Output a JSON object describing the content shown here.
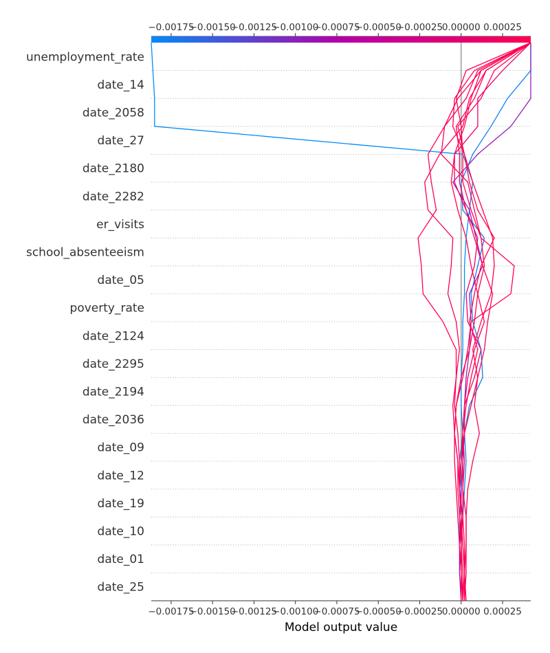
{
  "chart_data": {
    "type": "line",
    "subtype": "shap-decision-plot",
    "title": "",
    "xlabel": "Model output value",
    "ylabel": "",
    "xlim": [
      -0.00187,
      0.00042
    ],
    "base_value": 0.0,
    "x_ticks": [
      -0.00175,
      -0.0015,
      -0.00125,
      -0.001,
      -0.00075,
      -0.0005,
      -0.00025,
      0.0,
      0.00025
    ],
    "x_tick_labels": [
      "−0.00175",
      "−0.00150",
      "−0.00125",
      "−0.00100",
      "−0.00075",
      "−0.00050",
      "−0.00025",
      "0.00000",
      "0.00025"
    ],
    "features": [
      "unemployment_rate",
      "date_14",
      "date_2058",
      "date_27",
      "date_2180",
      "date_2282",
      "er_visits",
      "school_absenteeism",
      "date_05",
      "poverty_rate",
      "date_2124",
      "date_2295",
      "date_2194",
      "date_2036",
      "date_09",
      "date_12",
      "date_19",
      "date_10",
      "date_01",
      "date_25"
    ],
    "colormap": {
      "low": "#008bfb",
      "mid": "#b400a8",
      "high": "#ff0052"
    },
    "grid": "dotted-rows",
    "series": [
      {
        "color_value": 0.0,
        "values": [
          0.0,
          0.0,
          -1e-05,
          -1e-05,
          0.0,
          -1e-05,
          1e-05,
          0.0,
          0.0,
          1e-05,
          1e-05,
          2e-05,
          2e-05,
          3e-05,
          5e-05,
          7e-05,
          1e-05,
          -0.00185,
          -0.00185,
          -0.00186,
          -0.00187
        ]
      },
      {
        "color_value": 0.05,
        "values": [
          0.0,
          0.0,
          -1e-05,
          1e-05,
          2e-05,
          3e-05,
          2e-05,
          5e-05,
          0.00013,
          0.00012,
          7e-05,
          6e-05,
          0.0001,
          0.00014,
          1e-05,
          0.0,
          7e-05,
          0.00018,
          0.00028,
          0.00042,
          0.00042
        ]
      },
      {
        "color_value": 0.4,
        "values": [
          0.0,
          -1e-05,
          -1e-05,
          0.0,
          0.0,
          1e-05,
          1e-05,
          2e-05,
          3e-05,
          5e-05,
          6e-05,
          5e-05,
          0.00013,
          9e-05,
          5e-05,
          -5e-05,
          0.0001,
          0.0003,
          0.00042,
          0.00042,
          0.00042
        ]
      },
      {
        "color_value": 0.85,
        "values": [
          2e-05,
          3e-05,
          3e-05,
          3e-05,
          1e-05,
          1e-05,
          2e-05,
          2e-05,
          8e-05,
          0.00012,
          4e-05,
          3e-05,
          8e-05,
          0.0001,
          3e-05,
          -4e-05,
          -4e-05,
          0.0001,
          0.0001,
          0.00025,
          0.00042
        ]
      },
      {
        "color_value": 0.95,
        "values": [
          2e-05,
          2e-05,
          1e-05,
          0.0,
          -1e-05,
          -1e-05,
          -2e-05,
          -4e-05,
          -3e-05,
          -1e-05,
          -3e-05,
          -8e-05,
          -6e-05,
          -5e-05,
          -0.0002,
          -0.00022,
          -0.00013,
          1e-05,
          5e-05,
          0.00015,
          0.00042
        ]
      },
      {
        "color_value": 1.0,
        "values": [
          1e-05,
          1e-05,
          0.0,
          -1e-05,
          -2e-05,
          -2e-05,
          -4e-05,
          -5e-05,
          -3e-05,
          -3e-05,
          -0.00011,
          -0.00023,
          -0.00024,
          -0.00026,
          -0.00015,
          -0.00018,
          -0.0002,
          -0.0001,
          3e-05,
          0.0001,
          0.00042
        ]
      },
      {
        "color_value": 1.0,
        "values": [
          0.0,
          0.0,
          0.0,
          1e-05,
          1e-05,
          2e-05,
          1e-05,
          3e-05,
          6e-05,
          0.0001,
          5e-05,
          8e-05,
          0.00012,
          0.0002,
          0.0001,
          5e-05,
          2e-05,
          -2e-05,
          0.00012,
          0.0002,
          0.00042
        ]
      },
      {
        "color_value": 1.0,
        "values": [
          2e-05,
          2e-05,
          1e-05,
          0.0,
          -1e-05,
          0.0,
          2e-05,
          6e-05,
          0.0001,
          7e-05,
          0.00012,
          0.00018,
          0.0002,
          0.00019,
          0.00013,
          7e-05,
          2e-05,
          -5e-05,
          -4e-05,
          8e-05,
          0.00042
        ]
      },
      {
        "color_value": 1.0,
        "values": [
          0.0,
          0.0,
          -1e-05,
          -2e-05,
          -3e-05,
          -4e-05,
          -4e-05,
          -3e-05,
          0.0,
          5e-05,
          8e-05,
          0.0001,
          0.00014,
          0.00012,
          8e-05,
          4e-05,
          -0.00012,
          -0.0001,
          -2e-05,
          0.00012,
          0.00042
        ]
      },
      {
        "color_value": 1.0,
        "values": [
          1e-05,
          2e-05,
          2e-05,
          1e-05,
          -1e-05,
          -2e-05,
          -4e-05,
          -3e-05,
          1e-05,
          4e-05,
          6e-05,
          0.0003,
          0.00032,
          0.00012,
          6e-05,
          1e-05,
          1e-05,
          0.0,
          -3e-05,
          3e-05,
          0.00042
        ]
      },
      {
        "color_value": 1.0,
        "values": [
          3e-05,
          2e-05,
          3e-05,
          3e-05,
          4e-05,
          7e-05,
          0.00011,
          8e-05,
          0.0001,
          0.00014,
          0.00016,
          0.00019,
          0.00013,
          8e-05,
          3e-05,
          -1e-05,
          -1e-05,
          -3e-05,
          8e-05,
          0.00015,
          0.00042
        ]
      },
      {
        "color_value": 1.0,
        "values": [
          1e-05,
          0.0,
          0.0,
          0.0,
          -1e-05,
          0.0,
          1e-05,
          2e-05,
          4e-05,
          8e-05,
          0.00014,
          0.0001,
          6e-05,
          3e-05,
          -2e-05,
          -6e-05,
          -4e-05,
          2e-05,
          6e-05,
          0.00012,
          0.00042
        ]
      }
    ]
  }
}
